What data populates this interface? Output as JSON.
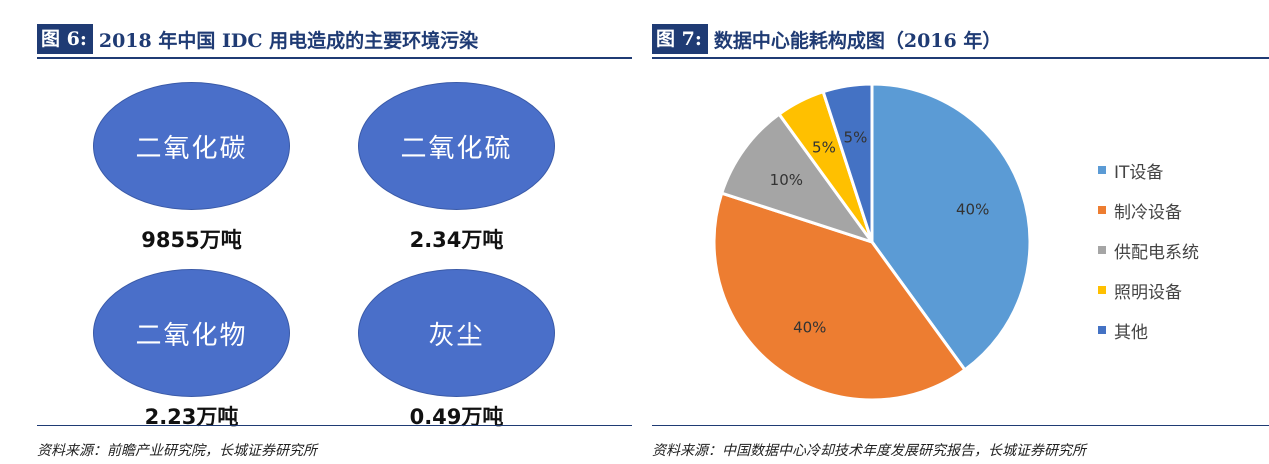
{
  "left": {
    "tag": "图 6:",
    "title": "2018 年中国 IDC 用电造成的主要环境污染",
    "items": [
      {
        "name": "二氧化碳",
        "amount": "9855万吨"
      },
      {
        "name": "二氧化硫",
        "amount": "2.34万吨"
      },
      {
        "name": "二氧化物",
        "amount": "2.23万吨"
      },
      {
        "name": "灰尘",
        "amount": "0.49万吨"
      }
    ],
    "footnote": "资料来源：前瞻产业研究院，长城证券研究所",
    "ellipse_color": "#4a6fc9"
  },
  "right": {
    "tag": "图 7:",
    "title": "数据中心能耗构成图（2016 年）",
    "footnote": "资料来源：中国数据中心冷却技术年度发展研究报告，长城证券研究所"
  },
  "chart_data": {
    "type": "pie",
    "title": "数据中心能耗构成图（2016 年）",
    "categories": [
      "IT设备",
      "制冷设备",
      "供配电系统",
      "照明设备",
      "其他"
    ],
    "values": [
      40,
      40,
      10,
      5,
      5
    ],
    "labels": [
      "40%",
      "40%",
      "10%",
      "5%",
      "5%"
    ],
    "colors": [
      "#5b9bd5",
      "#ed7d31",
      "#a5a5a5",
      "#ffc000",
      "#4472c4"
    ],
    "start": "12 o'clock",
    "direction": "clockwise",
    "legend": "right"
  },
  "colors": {
    "accent": "#1f3b74"
  }
}
